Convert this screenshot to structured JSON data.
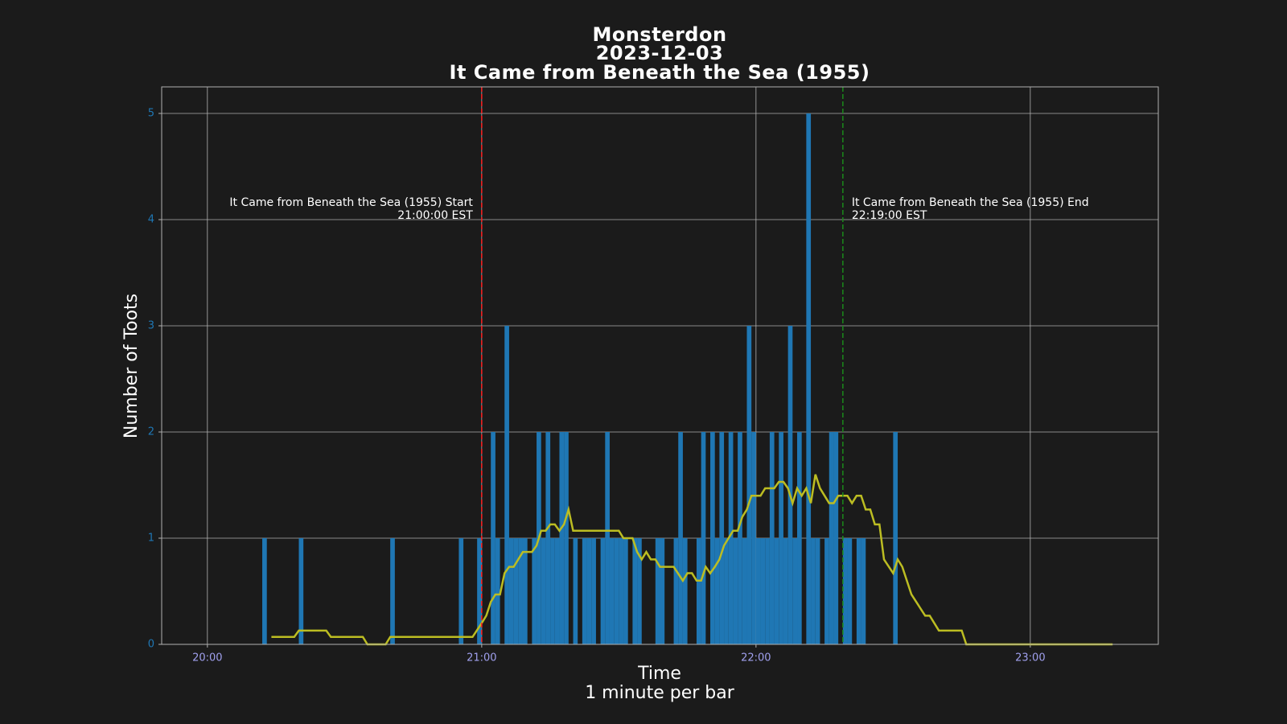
{
  "chart_data": {
    "type": "bar",
    "title": [
      "Monsterdon",
      "2023-12-03",
      "It Came from Beneath the Sea (1955)"
    ],
    "xlabel": [
      "Time",
      "1 minute per bar"
    ],
    "ylabel": "Number of Toots",
    "xlim": [
      "19:50",
      "23:28"
    ],
    "xticks": [
      "20:00",
      "21:00",
      "22:00",
      "23:00"
    ],
    "ylim": [
      0,
      5.25
    ],
    "yticks": [
      0,
      1,
      2,
      3,
      4,
      5
    ],
    "grid": true,
    "series": [
      {
        "type": "bar",
        "color": "#1f77b4",
        "x": [
          "20:12",
          "20:20",
          "20:40",
          "20:55",
          "20:59",
          "21:02",
          "21:03",
          "21:05",
          "21:06",
          "21:07",
          "21:08",
          "21:09",
          "21:11",
          "21:12",
          "21:13",
          "21:14",
          "21:15",
          "21:16",
          "21:17",
          "21:18",
          "21:20",
          "21:22",
          "21:23",
          "21:24",
          "21:26",
          "21:27",
          "21:28",
          "21:29",
          "21:30",
          "21:31",
          "21:33",
          "21:34",
          "21:38",
          "21:39",
          "21:42",
          "21:43",
          "21:44",
          "21:47",
          "21:48",
          "21:50",
          "21:51",
          "21:52",
          "21:53",
          "21:54",
          "21:55",
          "21:56",
          "21:57",
          "21:58",
          "21:59",
          "22:00",
          "22:01",
          "22:02",
          "22:03",
          "22:04",
          "22:05",
          "22:06",
          "22:07",
          "22:08",
          "22:09",
          "22:11",
          "22:12",
          "22:13",
          "22:15",
          "22:16",
          "22:17",
          "22:19",
          "22:20",
          "22:22",
          "22:23",
          "22:30"
        ],
        "values": [
          1,
          1,
          1,
          1,
          1,
          2,
          1,
          3,
          1,
          1,
          1,
          1,
          1,
          2,
          1,
          2,
          1,
          1,
          2,
          2,
          1,
          1,
          1,
          1,
          1,
          2,
          1,
          1,
          1,
          1,
          1,
          1,
          1,
          1,
          1,
          2,
          1,
          1,
          2,
          2,
          1,
          2,
          1,
          2,
          1,
          2,
          1,
          3,
          2,
          1,
          1,
          1,
          2,
          1,
          2,
          1,
          3,
          1,
          2,
          5,
          1,
          1,
          1,
          2,
          2,
          1,
          1,
          1,
          1,
          2
        ]
      },
      {
        "type": "line",
        "color": "#bcbd22",
        "x": [
          "20:14",
          "20:19",
          "20:20",
          "20:26",
          "20:27",
          "20:34",
          "20:35",
          "20:39",
          "20:40",
          "20:58",
          "21:00",
          "21:01",
          "21:02",
          "21:03",
          "21:04",
          "21:05",
          "21:06",
          "21:07",
          "21:08",
          "21:09",
          "21:11",
          "21:12",
          "21:13",
          "21:14",
          "21:15",
          "21:16",
          "21:17",
          "21:18",
          "21:19",
          "21:20",
          "21:29",
          "21:30",
          "21:31",
          "21:33",
          "21:34",
          "21:35",
          "21:36",
          "21:37",
          "21:38",
          "21:39",
          "21:42",
          "21:44",
          "21:45",
          "21:46",
          "21:47",
          "21:48",
          "21:49",
          "21:50",
          "21:51",
          "21:52",
          "21:53",
          "21:54",
          "21:55",
          "21:56",
          "21:57",
          "21:58",
          "21:59",
          "22:01",
          "22:02",
          "22:04",
          "22:05",
          "22:06",
          "22:07",
          "22:08",
          "22:09",
          "22:10",
          "22:11",
          "22:12",
          "22:13",
          "22:14",
          "22:16",
          "22:17",
          "22:18",
          "22:20",
          "22:21",
          "22:22",
          "22:23",
          "22:24",
          "22:25",
          "22:26",
          "22:27",
          "22:28",
          "22:30",
          "22:31",
          "22:32",
          "22:34",
          "22:37",
          "22:38",
          "22:40",
          "22:45",
          "22:46",
          "23:18"
        ],
        "values": [
          0.07,
          0.07,
          0.13,
          0.13,
          0.07,
          0.07,
          0,
          0,
          0.07,
          0.07,
          0.2,
          0.27,
          0.4,
          0.47,
          0.47,
          0.67,
          0.73,
          0.73,
          0.8,
          0.87,
          0.87,
          0.93,
          1.07,
          1.07,
          1.13,
          1.13,
          1.07,
          1.13,
          1.27,
          1.07,
          1.07,
          1.07,
          1.0,
          1.0,
          0.87,
          0.8,
          0.87,
          0.8,
          0.8,
          0.73,
          0.73,
          0.6,
          0.67,
          0.67,
          0.6,
          0.6,
          0.73,
          0.67,
          0.73,
          0.8,
          0.93,
          1.0,
          1.07,
          1.07,
          1.2,
          1.27,
          1.4,
          1.4,
          1.47,
          1.47,
          1.53,
          1.53,
          1.47,
          1.33,
          1.47,
          1.4,
          1.47,
          1.33,
          1.6,
          1.47,
          1.33,
          1.33,
          1.4,
          1.4,
          1.33,
          1.4,
          1.4,
          1.27,
          1.27,
          1.13,
          1.13,
          0.8,
          0.67,
          0.8,
          0.73,
          0.47,
          0.27,
          0.27,
          0.13,
          0.13,
          0,
          0
        ]
      }
    ],
    "vlines": [
      {
        "x": "21:00",
        "color": "#ff2020",
        "side": "left",
        "label": [
          "It Came from Beneath the Sea (1955) Start",
          "21:00:00 EST"
        ]
      },
      {
        "x": "22:19",
        "color": "#1a8a1a",
        "side": "right",
        "label": [
          "It Came from Beneath the Sea (1955) End",
          "22:19:00 EST"
        ]
      }
    ]
  }
}
